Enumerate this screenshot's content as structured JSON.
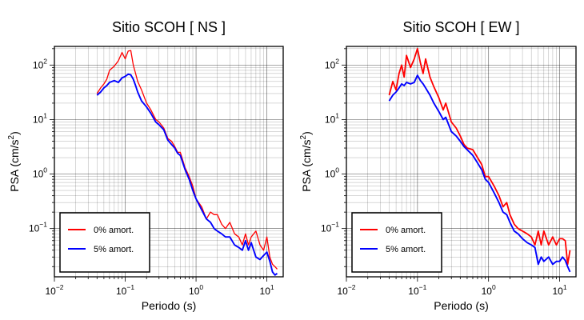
{
  "chart_data": [
    {
      "type": "line",
      "title": "Sitio SCOH [ NS ]",
      "xlabel": "Periodo (s)",
      "ylabel_main": "PSA (cm/s",
      "ylabel_sup": "2",
      "ylabel_tail": ")",
      "x_scale": "log",
      "y_scale": "log",
      "xlim": [
        0.01,
        17
      ],
      "ylim": [
        0.013,
        220
      ],
      "x_ticks": [
        {
          "value": 0.01,
          "base": "10",
          "exp": "−2"
        },
        {
          "value": 0.1,
          "base": "10",
          "exp": "−1"
        },
        {
          "value": 1,
          "base": "10",
          "exp": "0"
        },
        {
          "value": 10,
          "base": "10",
          "exp": "1"
        }
      ],
      "y_ticks": [
        {
          "value": 0.1,
          "base": "10",
          "exp": "−1"
        },
        {
          "value": 1,
          "base": "10",
          "exp": "0"
        },
        {
          "value": 10,
          "base": "10",
          "exp": "1"
        },
        {
          "value": 100,
          "base": "10",
          "exp": "2"
        }
      ],
      "grid": true,
      "legend_position": "bottom-left",
      "series": [
        {
          "name": "0% amort.",
          "color": "#ff0000",
          "x": [
            0.04,
            0.045,
            0.05,
            0.055,
            0.06,
            0.07,
            0.08,
            0.09,
            0.1,
            0.11,
            0.12,
            0.13,
            0.14,
            0.15,
            0.17,
            0.2,
            0.23,
            0.27,
            0.3,
            0.35,
            0.4,
            0.45,
            0.5,
            0.55,
            0.6,
            0.7,
            0.8,
            0.9,
            1.0,
            1.2,
            1.4,
            1.6,
            1.8,
            2.0,
            2.3,
            2.6,
            3.0,
            3.5,
            4.0,
            4.5,
            5.0,
            5.5,
            6.0,
            7.0,
            8.0,
            9.0,
            10.0,
            11.0,
            12.0,
            13.0,
            14.0
          ],
          "y": [
            30,
            38,
            45,
            55,
            80,
            95,
            120,
            170,
            130,
            180,
            185,
            100,
            70,
            50,
            35,
            20,
            15,
            10,
            9,
            7,
            4.5,
            4,
            3.2,
            2.5,
            2.5,
            1.3,
            0.9,
            0.6,
            0.35,
            0.25,
            0.15,
            0.2,
            0.18,
            0.18,
            0.12,
            0.1,
            0.13,
            0.08,
            0.07,
            0.05,
            0.08,
            0.05,
            0.07,
            0.09,
            0.05,
            0.04,
            0.07,
            0.03,
            0.022,
            0.02,
            0.018
          ]
        },
        {
          "name": "5% amort.",
          "color": "#0000ff",
          "x": [
            0.04,
            0.045,
            0.05,
            0.055,
            0.06,
            0.07,
            0.08,
            0.09,
            0.1,
            0.11,
            0.12,
            0.13,
            0.14,
            0.15,
            0.17,
            0.2,
            0.23,
            0.27,
            0.3,
            0.35,
            0.4,
            0.45,
            0.5,
            0.55,
            0.6,
            0.7,
            0.8,
            0.9,
            1.0,
            1.2,
            1.4,
            1.6,
            1.8,
            2.0,
            2.3,
            2.6,
            3.0,
            3.5,
            4.0,
            4.5,
            5.0,
            5.5,
            6.0,
            7.0,
            8.0,
            9.0,
            10.0,
            11.0,
            12.0,
            13.0,
            14.0
          ],
          "y": [
            28,
            32,
            38,
            42,
            48,
            52,
            48,
            58,
            62,
            68,
            66,
            55,
            42,
            32,
            22,
            17,
            13,
            9,
            8,
            6.5,
            4.2,
            3.5,
            3.0,
            2.4,
            2.2,
            1.2,
            0.8,
            0.5,
            0.35,
            0.22,
            0.15,
            0.13,
            0.1,
            0.09,
            0.08,
            0.07,
            0.07,
            0.05,
            0.045,
            0.04,
            0.06,
            0.04,
            0.055,
            0.03,
            0.027,
            0.032,
            0.037,
            0.025,
            0.016,
            0.014,
            0.015
          ]
        }
      ]
    },
    {
      "type": "line",
      "title": "Sitio SCOH [ EW ]",
      "xlabel": "Periodo (s)",
      "ylabel_main": "PSA (cm/s",
      "ylabel_sup": "2",
      "ylabel_tail": ")",
      "x_scale": "log",
      "y_scale": "log",
      "xlim": [
        0.01,
        17
      ],
      "ylim": [
        0.013,
        220
      ],
      "x_ticks": [
        {
          "value": 0.01,
          "base": "10",
          "exp": "−2"
        },
        {
          "value": 0.1,
          "base": "10",
          "exp": "−1"
        },
        {
          "value": 1,
          "base": "10",
          "exp": "0"
        },
        {
          "value": 10,
          "base": "10",
          "exp": "1"
        }
      ],
      "y_ticks": [
        {
          "value": 0.1,
          "base": "10",
          "exp": "−1"
        },
        {
          "value": 1,
          "base": "10",
          "exp": "0"
        },
        {
          "value": 10,
          "base": "10",
          "exp": "1"
        },
        {
          "value": 100,
          "base": "10",
          "exp": "2"
        }
      ],
      "grid": true,
      "legend_position": "bottom-left",
      "series": [
        {
          "name": "0% amort.",
          "color": "#ff0000",
          "x": [
            0.04,
            0.045,
            0.05,
            0.055,
            0.06,
            0.065,
            0.07,
            0.08,
            0.09,
            0.1,
            0.11,
            0.12,
            0.13,
            0.15,
            0.17,
            0.2,
            0.23,
            0.25,
            0.3,
            0.35,
            0.4,
            0.45,
            0.5,
            0.6,
            0.7,
            0.8,
            0.9,
            1.0,
            1.2,
            1.4,
            1.6,
            1.8,
            2.0,
            2.3,
            2.6,
            3.0,
            3.5,
            4.0,
            4.5,
            5.0,
            5.5,
            6.0,
            7.0,
            8.0,
            9.0,
            10.0,
            11.0,
            12.0,
            13.0,
            14.0
          ],
          "y": [
            28,
            50,
            35,
            70,
            100,
            60,
            150,
            90,
            130,
            200,
            110,
            70,
            130,
            60,
            40,
            25,
            15,
            20,
            9,
            7,
            5,
            3.5,
            3,
            2.8,
            2,
            1.5,
            0.9,
            0.9,
            0.6,
            0.4,
            0.25,
            0.3,
            0.18,
            0.12,
            0.1,
            0.09,
            0.08,
            0.07,
            0.05,
            0.09,
            0.05,
            0.09,
            0.05,
            0.07,
            0.05,
            0.065,
            0.065,
            0.06,
            0.022,
            0.04
          ]
        },
        {
          "name": "5% amort.",
          "color": "#0000ff",
          "x": [
            0.04,
            0.045,
            0.05,
            0.055,
            0.06,
            0.065,
            0.07,
            0.08,
            0.09,
            0.1,
            0.11,
            0.12,
            0.13,
            0.15,
            0.17,
            0.2,
            0.23,
            0.25,
            0.3,
            0.35,
            0.4,
            0.45,
            0.5,
            0.6,
            0.7,
            0.8,
            0.9,
            1.0,
            1.2,
            1.4,
            1.6,
            1.8,
            2.0,
            2.3,
            2.6,
            3.0,
            3.5,
            4.0,
            4.5,
            5.0,
            5.5,
            6.0,
            7.0,
            8.0,
            9.0,
            10.0,
            11.0,
            12.0,
            13.0,
            14.0
          ],
          "y": [
            22,
            28,
            32,
            38,
            45,
            42,
            48,
            45,
            48,
            65,
            52,
            45,
            38,
            28,
            20,
            14,
            10,
            11,
            6,
            5,
            4,
            3.2,
            2.8,
            2.2,
            1.6,
            1.2,
            0.8,
            0.7,
            0.45,
            0.3,
            0.2,
            0.18,
            0.13,
            0.09,
            0.08,
            0.065,
            0.055,
            0.05,
            0.045,
            0.022,
            0.03,
            0.025,
            0.03,
            0.022,
            0.025,
            0.025,
            0.03,
            0.026,
            0.02,
            0.016
          ]
        }
      ]
    }
  ]
}
